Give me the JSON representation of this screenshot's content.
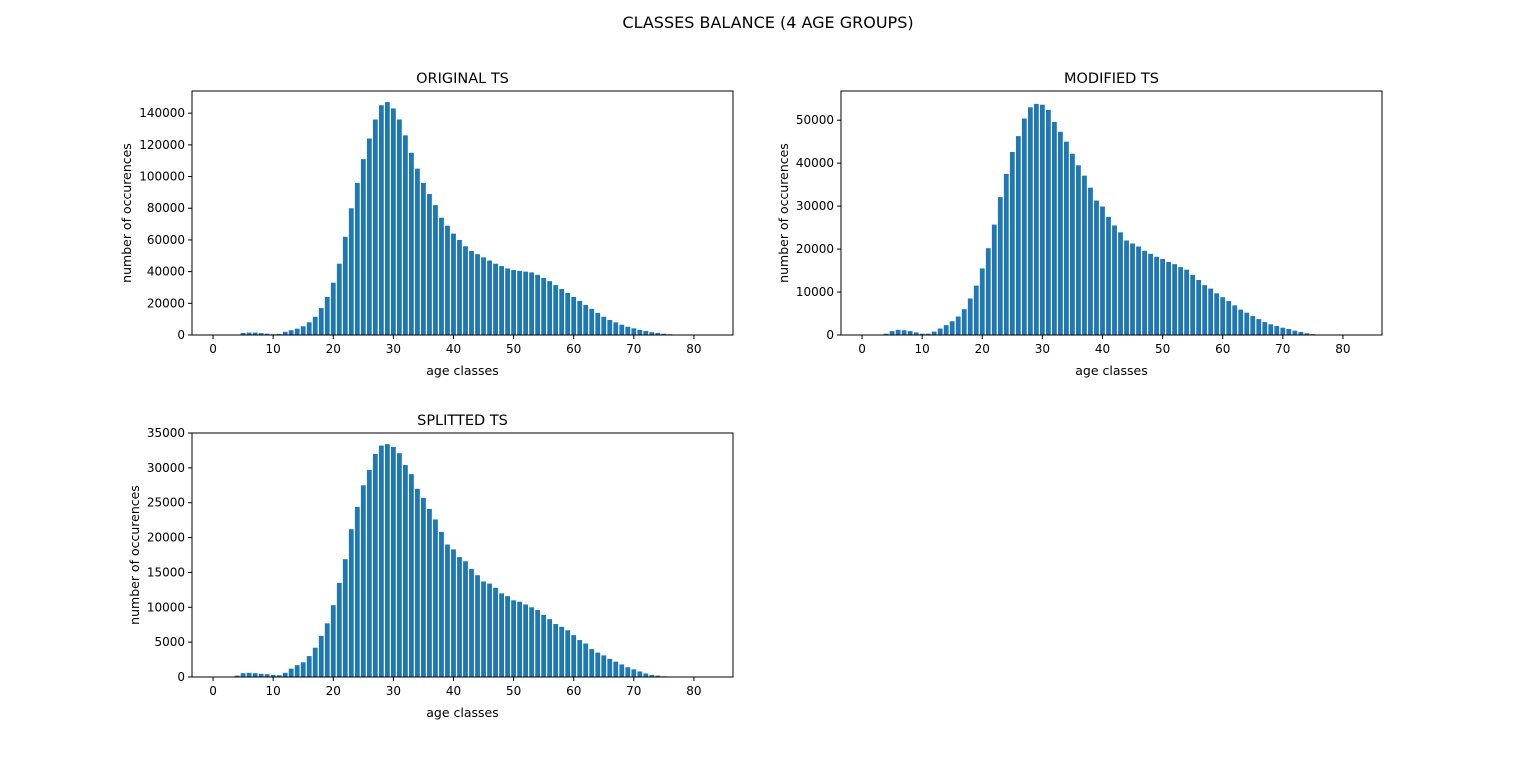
{
  "figure": {
    "suptitle": "CLASSES BALANCE (4 AGE GROUPS)"
  },
  "colors": {
    "bar": "#1f77b4",
    "axis": "#000000",
    "background": "#ffffff"
  },
  "chart_data": [
    {
      "type": "bar",
      "title": "ORIGINAL TS",
      "xlabel": "age classes",
      "ylabel": "number of occurences",
      "xlim": [
        -3.5,
        86.5
      ],
      "ylim": [
        0,
        154000
      ],
      "xticks": [
        0,
        10,
        20,
        30,
        40,
        50,
        60,
        70,
        80
      ],
      "yticks": [
        0,
        20000,
        40000,
        60000,
        80000,
        100000,
        120000,
        140000
      ],
      "grid": false,
      "x": [
        0,
        1,
        2,
        3,
        4,
        5,
        6,
        7,
        8,
        9,
        10,
        11,
        12,
        13,
        14,
        15,
        16,
        17,
        18,
        19,
        20,
        21,
        22,
        23,
        24,
        25,
        26,
        27,
        28,
        29,
        30,
        31,
        32,
        33,
        34,
        35,
        36,
        37,
        38,
        39,
        40,
        41,
        42,
        43,
        44,
        45,
        46,
        47,
        48,
        49,
        50,
        51,
        52,
        53,
        54,
        55,
        56,
        57,
        58,
        59,
        60,
        61,
        62,
        63,
        64,
        65,
        66,
        67,
        68,
        69,
        70,
        71,
        72,
        73,
        74,
        75,
        76,
        77,
        78,
        79,
        80,
        81,
        82,
        83
      ],
      "values": [
        100,
        100,
        100,
        200,
        300,
        1300,
        1500,
        1500,
        1200,
        800,
        500,
        600,
        2000,
        3000,
        4000,
        5500,
        8000,
        11500,
        17000,
        24000,
        33000,
        45000,
        62000,
        80000,
        96000,
        111000,
        124000,
        136000,
        145000,
        147000,
        143000,
        136000,
        126000,
        115000,
        105000,
        96000,
        89000,
        82000,
        74000,
        69000,
        64000,
        60000,
        56000,
        53000,
        51000,
        49000,
        47000,
        45000,
        43500,
        42000,
        41000,
        40500,
        40000,
        39500,
        38000,
        36000,
        34000,
        31500,
        29000,
        26500,
        24000,
        21500,
        19000,
        16500,
        14000,
        11500,
        9500,
        8000,
        6500,
        5200,
        4200,
        3200,
        2500,
        1800,
        1300,
        800,
        500,
        300,
        200,
        100,
        100,
        100,
        50,
        50
      ]
    },
    {
      "type": "bar",
      "title": "MODIFIED TS",
      "xlabel": "age classes",
      "ylabel": "number of occurences",
      "xlim": [
        -3.5,
        86.5
      ],
      "ylim": [
        0,
        56800
      ],
      "xticks": [
        0,
        10,
        20,
        30,
        40,
        50,
        60,
        70,
        80
      ],
      "yticks": [
        0,
        10000,
        20000,
        30000,
        40000,
        50000
      ],
      "grid": false,
      "x": [
        0,
        1,
        2,
        3,
        4,
        5,
        6,
        7,
        8,
        9,
        10,
        11,
        12,
        13,
        14,
        15,
        16,
        17,
        18,
        19,
        20,
        21,
        22,
        23,
        24,
        25,
        26,
        27,
        28,
        29,
        30,
        31,
        32,
        33,
        34,
        35,
        36,
        37,
        38,
        39,
        40,
        41,
        42,
        43,
        44,
        45,
        46,
        47,
        48,
        49,
        50,
        51,
        52,
        53,
        54,
        55,
        56,
        57,
        58,
        59,
        60,
        61,
        62,
        63,
        64,
        65,
        66,
        67,
        68,
        69,
        70,
        71,
        72,
        73,
        74,
        75,
        76,
        77,
        78,
        79,
        80,
        81,
        82,
        83
      ],
      "values": [
        0,
        0,
        0,
        100,
        300,
        900,
        1200,
        1100,
        900,
        600,
        300,
        300,
        800,
        1500,
        2300,
        3200,
        4300,
        6000,
        8500,
        11500,
        15500,
        20200,
        25700,
        32100,
        37500,
        42600,
        46300,
        50400,
        53000,
        53800,
        53600,
        52400,
        49600,
        47300,
        45000,
        42200,
        39500,
        37100,
        34300,
        31300,
        29900,
        27500,
        25500,
        23900,
        22000,
        21300,
        20600,
        19600,
        18900,
        18200,
        17700,
        17000,
        16500,
        15800,
        15200,
        14000,
        12800,
        11600,
        10800,
        9700,
        8800,
        7900,
        6900,
        5900,
        5200,
        4400,
        3700,
        3000,
        2500,
        2100,
        1700,
        1400,
        1000,
        700,
        400,
        200,
        100,
        50,
        0,
        0,
        0,
        0,
        0,
        0
      ]
    },
    {
      "type": "bar",
      "title": "SPLITTED TS",
      "xlabel": "age classes",
      "ylabel": "number of occurences",
      "xlim": [
        -3.5,
        86.5
      ],
      "ylim": [
        0,
        35000
      ],
      "xticks": [
        0,
        10,
        20,
        30,
        40,
        50,
        60,
        70,
        80
      ],
      "yticks": [
        0,
        5000,
        10000,
        15000,
        20000,
        25000,
        30000,
        35000
      ],
      "grid": false,
      "x": [
        0,
        1,
        2,
        3,
        4,
        5,
        6,
        7,
        8,
        9,
        10,
        11,
        12,
        13,
        14,
        15,
        16,
        17,
        18,
        19,
        20,
        21,
        22,
        23,
        24,
        25,
        26,
        27,
        28,
        29,
        30,
        31,
        32,
        33,
        34,
        35,
        36,
        37,
        38,
        39,
        40,
        41,
        42,
        43,
        44,
        45,
        46,
        47,
        48,
        49,
        50,
        51,
        52,
        53,
        54,
        55,
        56,
        57,
        58,
        59,
        60,
        61,
        62,
        63,
        64,
        65,
        66,
        67,
        68,
        69,
        70,
        71,
        72,
        73,
        74,
        75,
        76,
        77,
        78,
        79,
        80,
        81,
        82,
        83
      ],
      "values": [
        0,
        0,
        0,
        50,
        200,
        550,
        600,
        550,
        450,
        400,
        300,
        250,
        600,
        1200,
        1700,
        2100,
        3000,
        4200,
        5900,
        7700,
        10300,
        13500,
        16900,
        21200,
        24400,
        27500,
        29700,
        32000,
        33200,
        33400,
        33000,
        32100,
        30400,
        29100,
        27000,
        25700,
        24100,
        22600,
        20800,
        19000,
        18300,
        17200,
        16600,
        15500,
        14600,
        13700,
        13400,
        12800,
        12000,
        11600,
        11000,
        10800,
        10400,
        10000,
        9600,
        8900,
        8300,
        7600,
        7200,
        6700,
        6000,
        5300,
        4800,
        4000,
        3500,
        3100,
        2600,
        2200,
        1800,
        1400,
        1100,
        800,
        500,
        300,
        200,
        100,
        50,
        0,
        0,
        0,
        0,
        0,
        0,
        0
      ]
    }
  ]
}
